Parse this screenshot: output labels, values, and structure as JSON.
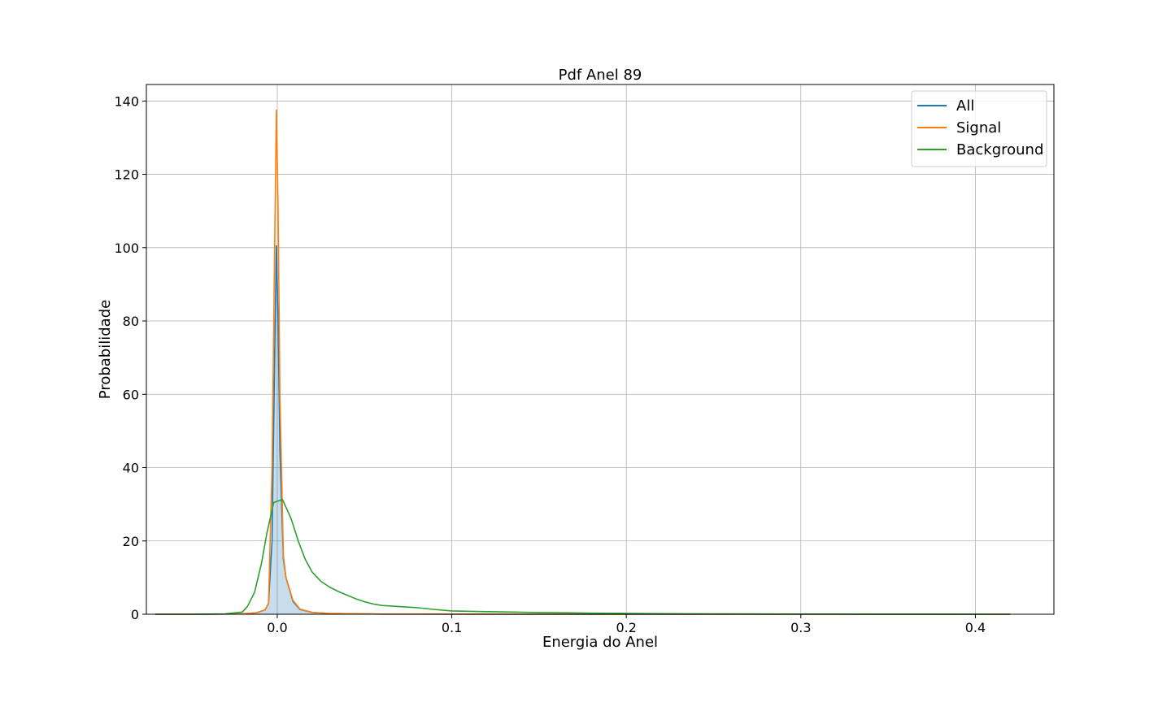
{
  "chart_data": {
    "type": "line",
    "title": "Pdf Anel 89",
    "xlabel": "Energia do Anel",
    "ylabel": "Probabilidade",
    "xlim": [
      -0.075,
      0.445
    ],
    "ylim": [
      0,
      144.5
    ],
    "xticks": [
      0.0,
      0.1,
      0.2,
      0.3,
      0.4
    ],
    "xtick_labels": [
      "0.0",
      "0.1",
      "0.2",
      "0.3",
      "0.4"
    ],
    "yticks": [
      0,
      20,
      40,
      60,
      80,
      100,
      120,
      140
    ],
    "ytick_labels": [
      "0",
      "20",
      "40",
      "60",
      "80",
      "100",
      "120",
      "140"
    ],
    "grid": true,
    "legend_position": "top-right",
    "series": [
      {
        "name": "All",
        "color": "#1f77b4",
        "filled": true,
        "points": [
          [
            -0.07,
            0
          ],
          [
            -0.04,
            0
          ],
          [
            -0.02,
            0.1
          ],
          [
            -0.012,
            0.4
          ],
          [
            -0.007,
            1.2
          ],
          [
            -0.005,
            3
          ],
          [
            -0.003,
            20
          ],
          [
            -0.0015,
            70
          ],
          [
            -0.0005,
            100.5
          ],
          [
            0.0005,
            80
          ],
          [
            0.0015,
            45
          ],
          [
            0.0035,
            15
          ],
          [
            0.005,
            10
          ],
          [
            0.009,
            3.5
          ],
          [
            0.013,
            1.3
          ],
          [
            0.02,
            0.5
          ],
          [
            0.03,
            0.2
          ],
          [
            0.06,
            0.05
          ],
          [
            0.15,
            0
          ],
          [
            0.3,
            0
          ],
          [
            0.42,
            0
          ]
        ]
      },
      {
        "name": "Signal",
        "color": "#ff7f0e",
        "filled": false,
        "points": [
          [
            -0.07,
            0
          ],
          [
            -0.04,
            0
          ],
          [
            -0.02,
            0.1
          ],
          [
            -0.012,
            0.4
          ],
          [
            -0.007,
            1.2
          ],
          [
            -0.005,
            3
          ],
          [
            -0.003,
            40
          ],
          [
            -0.0015,
            100
          ],
          [
            -0.0005,
            137.5
          ],
          [
            0.0005,
            110
          ],
          [
            0.0015,
            60
          ],
          [
            0.0035,
            16
          ],
          [
            0.005,
            10
          ],
          [
            0.009,
            3.8
          ],
          [
            0.013,
            1.4
          ],
          [
            0.02,
            0.5
          ],
          [
            0.03,
            0.2
          ],
          [
            0.06,
            0.05
          ],
          [
            0.15,
            0
          ],
          [
            0.3,
            0
          ],
          [
            0.42,
            0
          ]
        ]
      },
      {
        "name": "Background",
        "color": "#2ca02c",
        "filled": false,
        "points": [
          [
            -0.07,
            0
          ],
          [
            -0.05,
            0
          ],
          [
            -0.03,
            0.1
          ],
          [
            -0.02,
            0.6
          ],
          [
            -0.017,
            2.2
          ],
          [
            -0.013,
            6
          ],
          [
            -0.009,
            14
          ],
          [
            -0.006,
            22
          ],
          [
            -0.002,
            30.5
          ],
          [
            0.003,
            31.3
          ],
          [
            0.008,
            26
          ],
          [
            0.012,
            20
          ],
          [
            0.016,
            15
          ],
          [
            0.02,
            11.5
          ],
          [
            0.025,
            9
          ],
          [
            0.03,
            7.4
          ],
          [
            0.035,
            6.2
          ],
          [
            0.04,
            5.2
          ],
          [
            0.045,
            4.2
          ],
          [
            0.05,
            3.4
          ],
          [
            0.055,
            2.8
          ],
          [
            0.06,
            2.4
          ],
          [
            0.07,
            2.1
          ],
          [
            0.08,
            1.8
          ],
          [
            0.09,
            1.3
          ],
          [
            0.1,
            0.9
          ],
          [
            0.12,
            0.7
          ],
          [
            0.135,
            0.6
          ],
          [
            0.15,
            0.45
          ],
          [
            0.165,
            0.4
          ],
          [
            0.18,
            0.3
          ],
          [
            0.2,
            0.25
          ],
          [
            0.22,
            0.15
          ],
          [
            0.25,
            0.1
          ],
          [
            0.3,
            0.05
          ],
          [
            0.36,
            0.02
          ],
          [
            0.42,
            0
          ]
        ]
      }
    ]
  }
}
